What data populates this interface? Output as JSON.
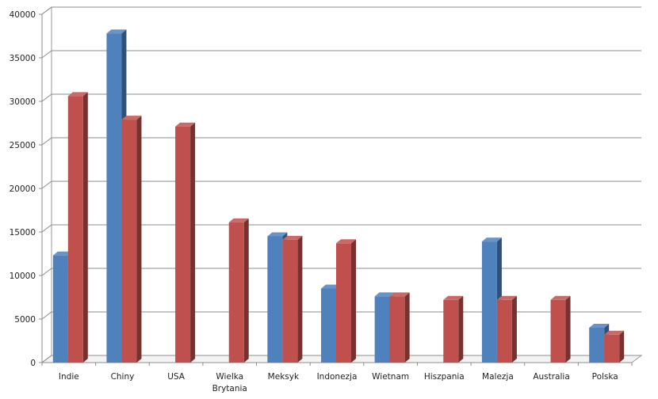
{
  "chart_data": {
    "type": "bar",
    "style": "3d-clustered-column",
    "categories": [
      [
        "Indie"
      ],
      [
        "Chiny"
      ],
      [
        "USA"
      ],
      [
        "Wielka",
        "Brytania"
      ],
      [
        "Meksyk"
      ],
      [
        "Indonezja"
      ],
      [
        "Wietnam"
      ],
      [
        "Hiszpania"
      ],
      [
        "Malezja"
      ],
      [
        "Australia"
      ],
      [
        "Polska"
      ]
    ],
    "series": [
      {
        "color": "#4F81BD",
        "values": [
          12300,
          37800,
          0,
          0,
          14500,
          8500,
          7600,
          0,
          13900,
          0,
          4000
        ]
      },
      {
        "color": "#C0504D",
        "values": [
          30600,
          27900,
          27100,
          16100,
          14100,
          13700,
          7600,
          7200,
          7200,
          7200,
          3200
        ]
      }
    ],
    "ylim": [
      0,
      40000
    ],
    "yticks": [
      0,
      5000,
      10000,
      15000,
      20000,
      25000,
      30000,
      35000,
      40000
    ],
    "grid": true,
    "legend": "none",
    "title": "",
    "xlabel": "",
    "ylabel": ""
  }
}
